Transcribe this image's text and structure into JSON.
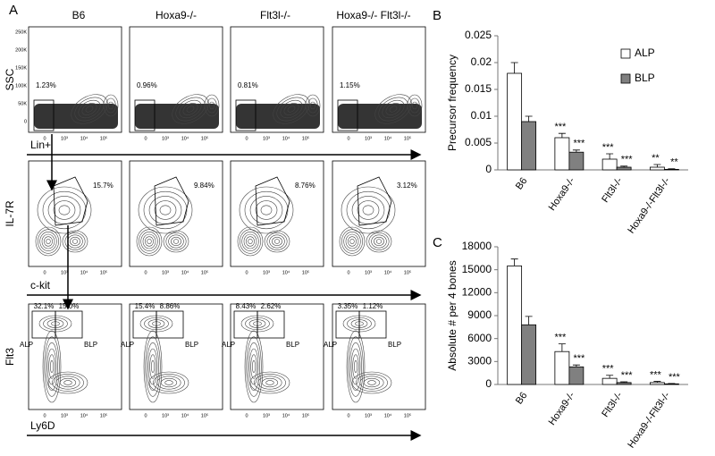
{
  "panel_a": {
    "label": "A",
    "columns": [
      "B6",
      "Hoxa9-/-",
      "Flt3l-/-",
      "Hoxa9-/- Flt3l-/-"
    ],
    "row_axes": [
      {
        "y": "SSC",
        "x": "Lin+"
      },
      {
        "y": "IL-7R",
        "x": "c-kit"
      },
      {
        "y": "Flt3",
        "x": "Ly6D"
      }
    ],
    "lin_gates": [
      "1.23%",
      "0.96%",
      "0.81%",
      "1.15%"
    ],
    "il7r_gates": [
      "15.7%",
      "9.84%",
      "8.76%",
      "3.12%"
    ],
    "ly6d_gates": [
      {
        "alp": "32.1%",
        "blp": "15.0%"
      },
      {
        "alp": "15.4%",
        "blp": "8.86%"
      },
      {
        "alp": "8.43%",
        "blp": "2.62%"
      },
      {
        "alp": "3.35%",
        "blp": "1.12%"
      }
    ],
    "gate_names": [
      "ALP",
      "BLP"
    ],
    "x_ticks": [
      "0",
      "10³",
      "10⁴",
      "10⁵"
    ],
    "ssc_ticks": [
      "250K",
      "200K",
      "150K",
      "100K",
      "50K",
      "0"
    ]
  },
  "chart_data": [
    {
      "type": "bar",
      "panel": "B",
      "y_label": "Precursor frequency",
      "categories": [
        "B6",
        "Hoxa9-/-",
        "Flt3l-/-",
        "Hoxa9-/-Flt3l-/-"
      ],
      "series": [
        {
          "name": "ALP",
          "color": "#ffffff",
          "values": [
            0.018,
            0.006,
            0.002,
            0.0005
          ],
          "errors": [
            0.002,
            0.0008,
            0.001,
            0.0005
          ],
          "significance": [
            null,
            "***",
            "***",
            "**"
          ]
        },
        {
          "name": "BLP",
          "color": "#808080",
          "values": [
            0.009,
            0.0033,
            0.0005,
            0.0001
          ],
          "errors": [
            0.001,
            0.0004,
            0.0002,
            0.0001
          ],
          "significance": [
            null,
            "***",
            "***",
            "**"
          ]
        }
      ],
      "ylim": [
        0,
        0.025
      ],
      "yticks": [
        0,
        0.005,
        0.01,
        0.015,
        0.02,
        0.025
      ],
      "legend": "upper right"
    },
    {
      "type": "bar",
      "panel": "C",
      "y_label": "Absolute # per 4  bones",
      "categories": [
        "B6",
        "Hoxa9-/-",
        "Flt3l-/-",
        "Hoxa9-/-Flt3l-/-"
      ],
      "series": [
        {
          "name": "ALP",
          "color": "#ffffff",
          "values": [
            15500,
            4300,
            800,
            250
          ],
          "errors": [
            900,
            1000,
            400,
            150
          ],
          "significance": [
            null,
            "***",
            "***",
            "***"
          ]
        },
        {
          "name": "BLP",
          "color": "#808080",
          "values": [
            7800,
            2300,
            250,
            80
          ],
          "errors": [
            1100,
            250,
            100,
            50
          ],
          "significance": [
            null,
            "***",
            "***",
            "***"
          ]
        }
      ],
      "ylim": [
        0,
        18000
      ],
      "yticks": [
        0,
        3000,
        6000,
        9000,
        12000,
        15000,
        18000
      ]
    }
  ]
}
